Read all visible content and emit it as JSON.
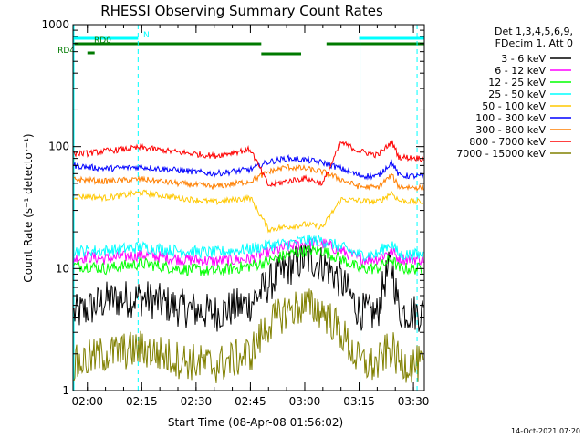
{
  "chart_data": {
    "type": "line",
    "title": "RHESSI Observing Summary Count Rates",
    "xlabel": "Start Time (08-Apr-08 01:56:02)",
    "ylabel": "Count Rate (s⁻¹ detector⁻¹)",
    "yscale": "log",
    "ylim": [
      1,
      1000
    ],
    "xlim": [
      "01:56:02",
      "03:33:00"
    ],
    "x_ticks": [
      "02:00",
      "02:15",
      "02:30",
      "02:45",
      "03:00",
      "03:15",
      "03:30"
    ],
    "y_ticks": [
      "1",
      "10",
      "100",
      "1000"
    ],
    "legend_header": [
      "Det 1,3,4,5,6,9,",
      "FDecim 1, Att 0"
    ],
    "legend_position": "right",
    "timestamp": "14-Oct-2021 07:20",
    "flags": [
      {
        "label": "N",
        "color": "#00ffff",
        "segments": [
          [
            "01:56:02",
            "02:14:00"
          ],
          [
            "03:15:00",
            "03:33:00"
          ]
        ]
      },
      {
        "label": "RD0",
        "color": "#007a00",
        "segments": [
          [
            "01:56:02",
            "02:48:00"
          ],
          [
            "02:48:00",
            "02:59:00"
          ],
          [
            "03:06:00",
            "03:33:00"
          ]
        ]
      },
      {
        "label": "RD4",
        "color": "#007a00",
        "segments": [
          [
            "02:00:00",
            "02:02:00"
          ]
        ]
      }
    ],
    "dashed_lines": [
      "02:14:00",
      "03:31:00"
    ],
    "solid_lines": [
      "01:56:02",
      "03:15:00"
    ],
    "series": [
      {
        "name": "3 - 6 keV",
        "color": "#000000",
        "x": [
          "01:56",
          "02:00",
          "02:05",
          "02:15",
          "02:25",
          "02:35",
          "02:45",
          "02:50",
          "02:55",
          "03:00",
          "03:05",
          "03:10",
          "03:15",
          "03:20",
          "03:22",
          "03:24",
          "03:26",
          "03:33"
        ],
        "values": [
          4.2,
          4.6,
          5.5,
          5.8,
          4.8,
          4.3,
          5.2,
          7.5,
          10,
          12,
          11,
          8,
          4.5,
          4.2,
          8,
          11,
          4.5,
          4.3
        ]
      },
      {
        "name": "6 - 12 keV",
        "color": "#ff00ff",
        "x": [
          "01:56",
          "02:00",
          "02:05",
          "02:15",
          "02:25",
          "02:35",
          "02:45",
          "02:50",
          "02:55",
          "03:00",
          "03:05",
          "03:10",
          "03:15",
          "03:20",
          "03:22",
          "03:24",
          "03:26",
          "03:33"
        ],
        "values": [
          12,
          12.5,
          12,
          13,
          12,
          11.5,
          12,
          13.5,
          15,
          16,
          16,
          14,
          12,
          12,
          13,
          14,
          12,
          12
        ]
      },
      {
        "name": "12 - 25 keV",
        "color": "#00ff00",
        "x": [
          "01:56",
          "02:00",
          "02:05",
          "02:15",
          "02:25",
          "02:35",
          "02:45",
          "02:50",
          "02:55",
          "03:00",
          "03:05",
          "03:10",
          "03:15",
          "03:20",
          "03:22",
          "03:24",
          "03:26",
          "03:33"
        ],
        "values": [
          10.5,
          10.5,
          10,
          11,
          10,
          9.5,
          10.5,
          11.5,
          13,
          14,
          14,
          12,
          10,
          10,
          11,
          12,
          10,
          10
        ]
      },
      {
        "name": "25 - 50 keV",
        "color": "#00ffff",
        "x": [
          "01:56",
          "02:00",
          "02:05",
          "02:15",
          "02:25",
          "02:35",
          "02:45",
          "02:50",
          "02:55",
          "03:00",
          "03:05",
          "03:10",
          "03:15",
          "03:20",
          "03:22",
          "03:24",
          "03:26",
          "03:33"
        ],
        "values": [
          14,
          14,
          14,
          15,
          14,
          13.5,
          14.5,
          15.5,
          16,
          17,
          17,
          15,
          13,
          13,
          15,
          16,
          13,
          13
        ]
      },
      {
        "name": "50 - 100 keV",
        "color": "#ffc800",
        "x": [
          "01:56",
          "02:00",
          "02:05",
          "02:15",
          "02:25",
          "02:35",
          "02:45",
          "02:50",
          "02:55",
          "03:00",
          "03:05",
          "03:10",
          "03:15",
          "03:20",
          "03:22",
          "03:24",
          "03:26",
          "03:33"
        ],
        "values": [
          39,
          39,
          38,
          42,
          38,
          35,
          38,
          21,
          22,
          23,
          22,
          37,
          36,
          35,
          38,
          42,
          36,
          35
        ]
      },
      {
        "name": "100 - 300 keV",
        "color": "#0000ff",
        "x": [
          "01:56",
          "02:00",
          "02:05",
          "02:15",
          "02:25",
          "02:35",
          "02:45",
          "02:50",
          "02:55",
          "03:00",
          "03:05",
          "03:10",
          "03:15",
          "03:20",
          "03:22",
          "03:24",
          "03:26",
          "03:33"
        ],
        "values": [
          70,
          68,
          66,
          68,
          64,
          60,
          65,
          75,
          80,
          78,
          74,
          66,
          58,
          57,
          65,
          75,
          58,
          57
        ]
      },
      {
        "name": "300 - 800 keV",
        "color": "#ff7f00",
        "x": [
          "01:56",
          "02:00",
          "02:05",
          "02:15",
          "02:25",
          "02:35",
          "02:45",
          "02:50",
          "02:55",
          "03:00",
          "03:05",
          "03:10",
          "03:15",
          "03:20",
          "03:22",
          "03:24",
          "03:26",
          "03:33"
        ],
        "values": [
          54,
          53,
          52,
          54,
          50,
          47,
          52,
          62,
          68,
          66,
          62,
          54,
          47,
          46,
          52,
          58,
          47,
          46
        ]
      },
      {
        "name": "800 - 7000 keV",
        "color": "#ff0000",
        "x": [
          "01:56",
          "02:00",
          "02:05",
          "02:15",
          "02:25",
          "02:35",
          "02:45",
          "02:50",
          "02:55",
          "03:00",
          "03:05",
          "03:10",
          "03:15",
          "03:20",
          "03:22",
          "03:24",
          "03:26",
          "03:33"
        ],
        "values": [
          88,
          88,
          92,
          98,
          90,
          84,
          95,
          48,
          52,
          55,
          50,
          108,
          92,
          85,
          95,
          110,
          82,
          80
        ]
      },
      {
        "name": "7000 - 15000 keV",
        "color": "#808000",
        "x": [
          "01:56",
          "02:00",
          "02:05",
          "02:15",
          "02:25",
          "02:35",
          "02:45",
          "02:50",
          "02:55",
          "03:00",
          "03:05",
          "03:10",
          "03:15",
          "03:20",
          "03:22",
          "03:24",
          "03:26",
          "03:33"
        ],
        "values": [
          1.6,
          1.8,
          2,
          2.2,
          1.8,
          1.6,
          2,
          3.5,
          4.5,
          5,
          4.5,
          3,
          1.7,
          1.6,
          2,
          2.2,
          1.7,
          1.6
        ]
      }
    ]
  }
}
